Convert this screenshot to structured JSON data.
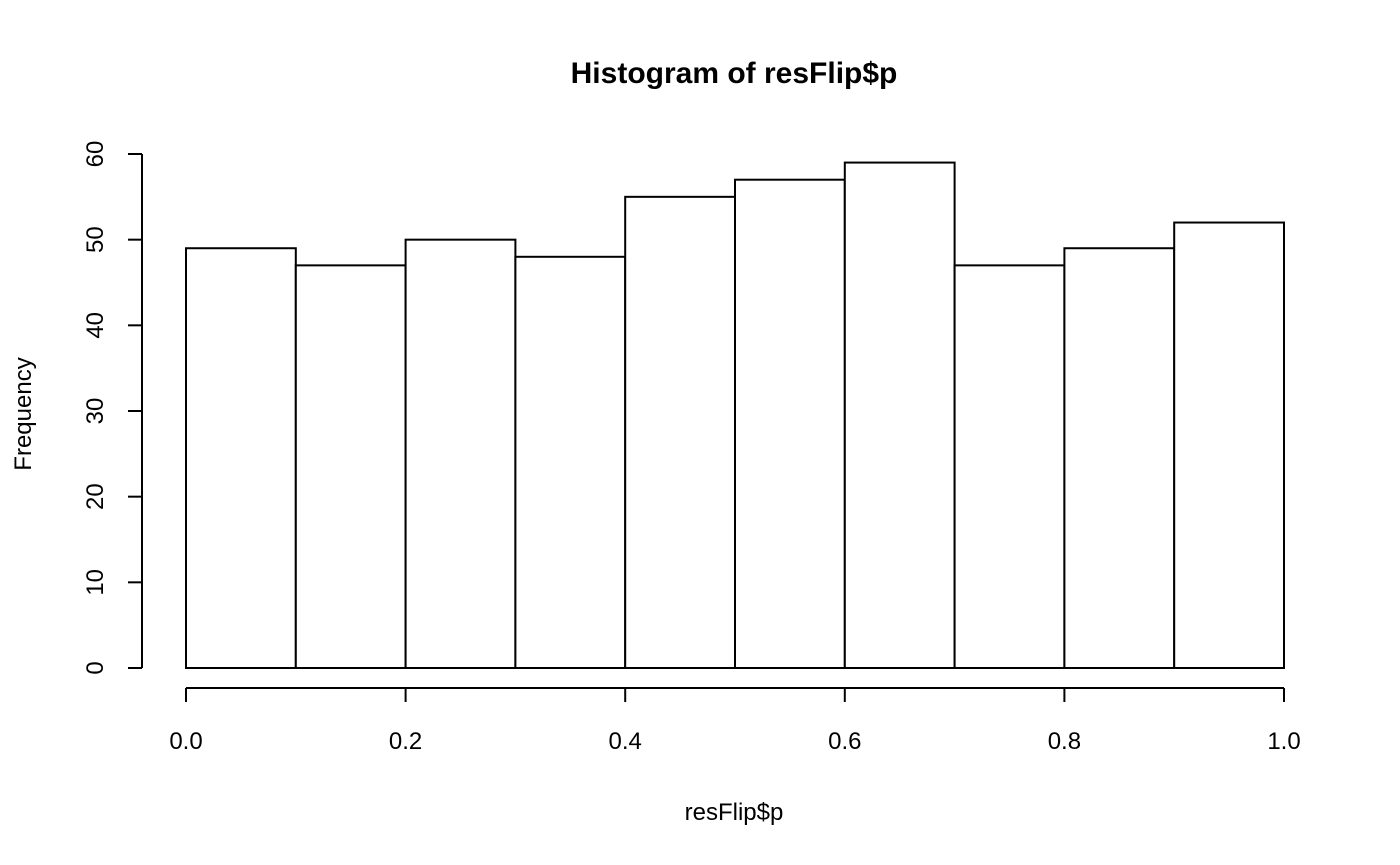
{
  "chart_data": {
    "type": "bar",
    "title": "Histogram of resFlip$p",
    "xlabel": "resFlip$p",
    "ylabel": "Frequency",
    "bins": [
      {
        "start": 0.0,
        "end": 0.1,
        "count": 49
      },
      {
        "start": 0.1,
        "end": 0.2,
        "count": 47
      },
      {
        "start": 0.2,
        "end": 0.3,
        "count": 50
      },
      {
        "start": 0.3,
        "end": 0.4,
        "count": 48
      },
      {
        "start": 0.4,
        "end": 0.5,
        "count": 55
      },
      {
        "start": 0.5,
        "end": 0.6,
        "count": 57
      },
      {
        "start": 0.6,
        "end": 0.7,
        "count": 59
      },
      {
        "start": 0.7,
        "end": 0.8,
        "count": 47
      },
      {
        "start": 0.8,
        "end": 0.9,
        "count": 49
      },
      {
        "start": 0.9,
        "end": 1.0,
        "count": 52
      }
    ],
    "xlim": [
      0.0,
      1.0
    ],
    "ylim": [
      0,
      60
    ],
    "x_ticks": [
      "0.0",
      "0.2",
      "0.4",
      "0.6",
      "0.8",
      "1.0"
    ],
    "y_ticks": [
      "0",
      "10",
      "20",
      "30",
      "40",
      "50",
      "60"
    ],
    "grid": false,
    "bar_fill": "#ffffff",
    "bar_stroke": "#000000"
  }
}
